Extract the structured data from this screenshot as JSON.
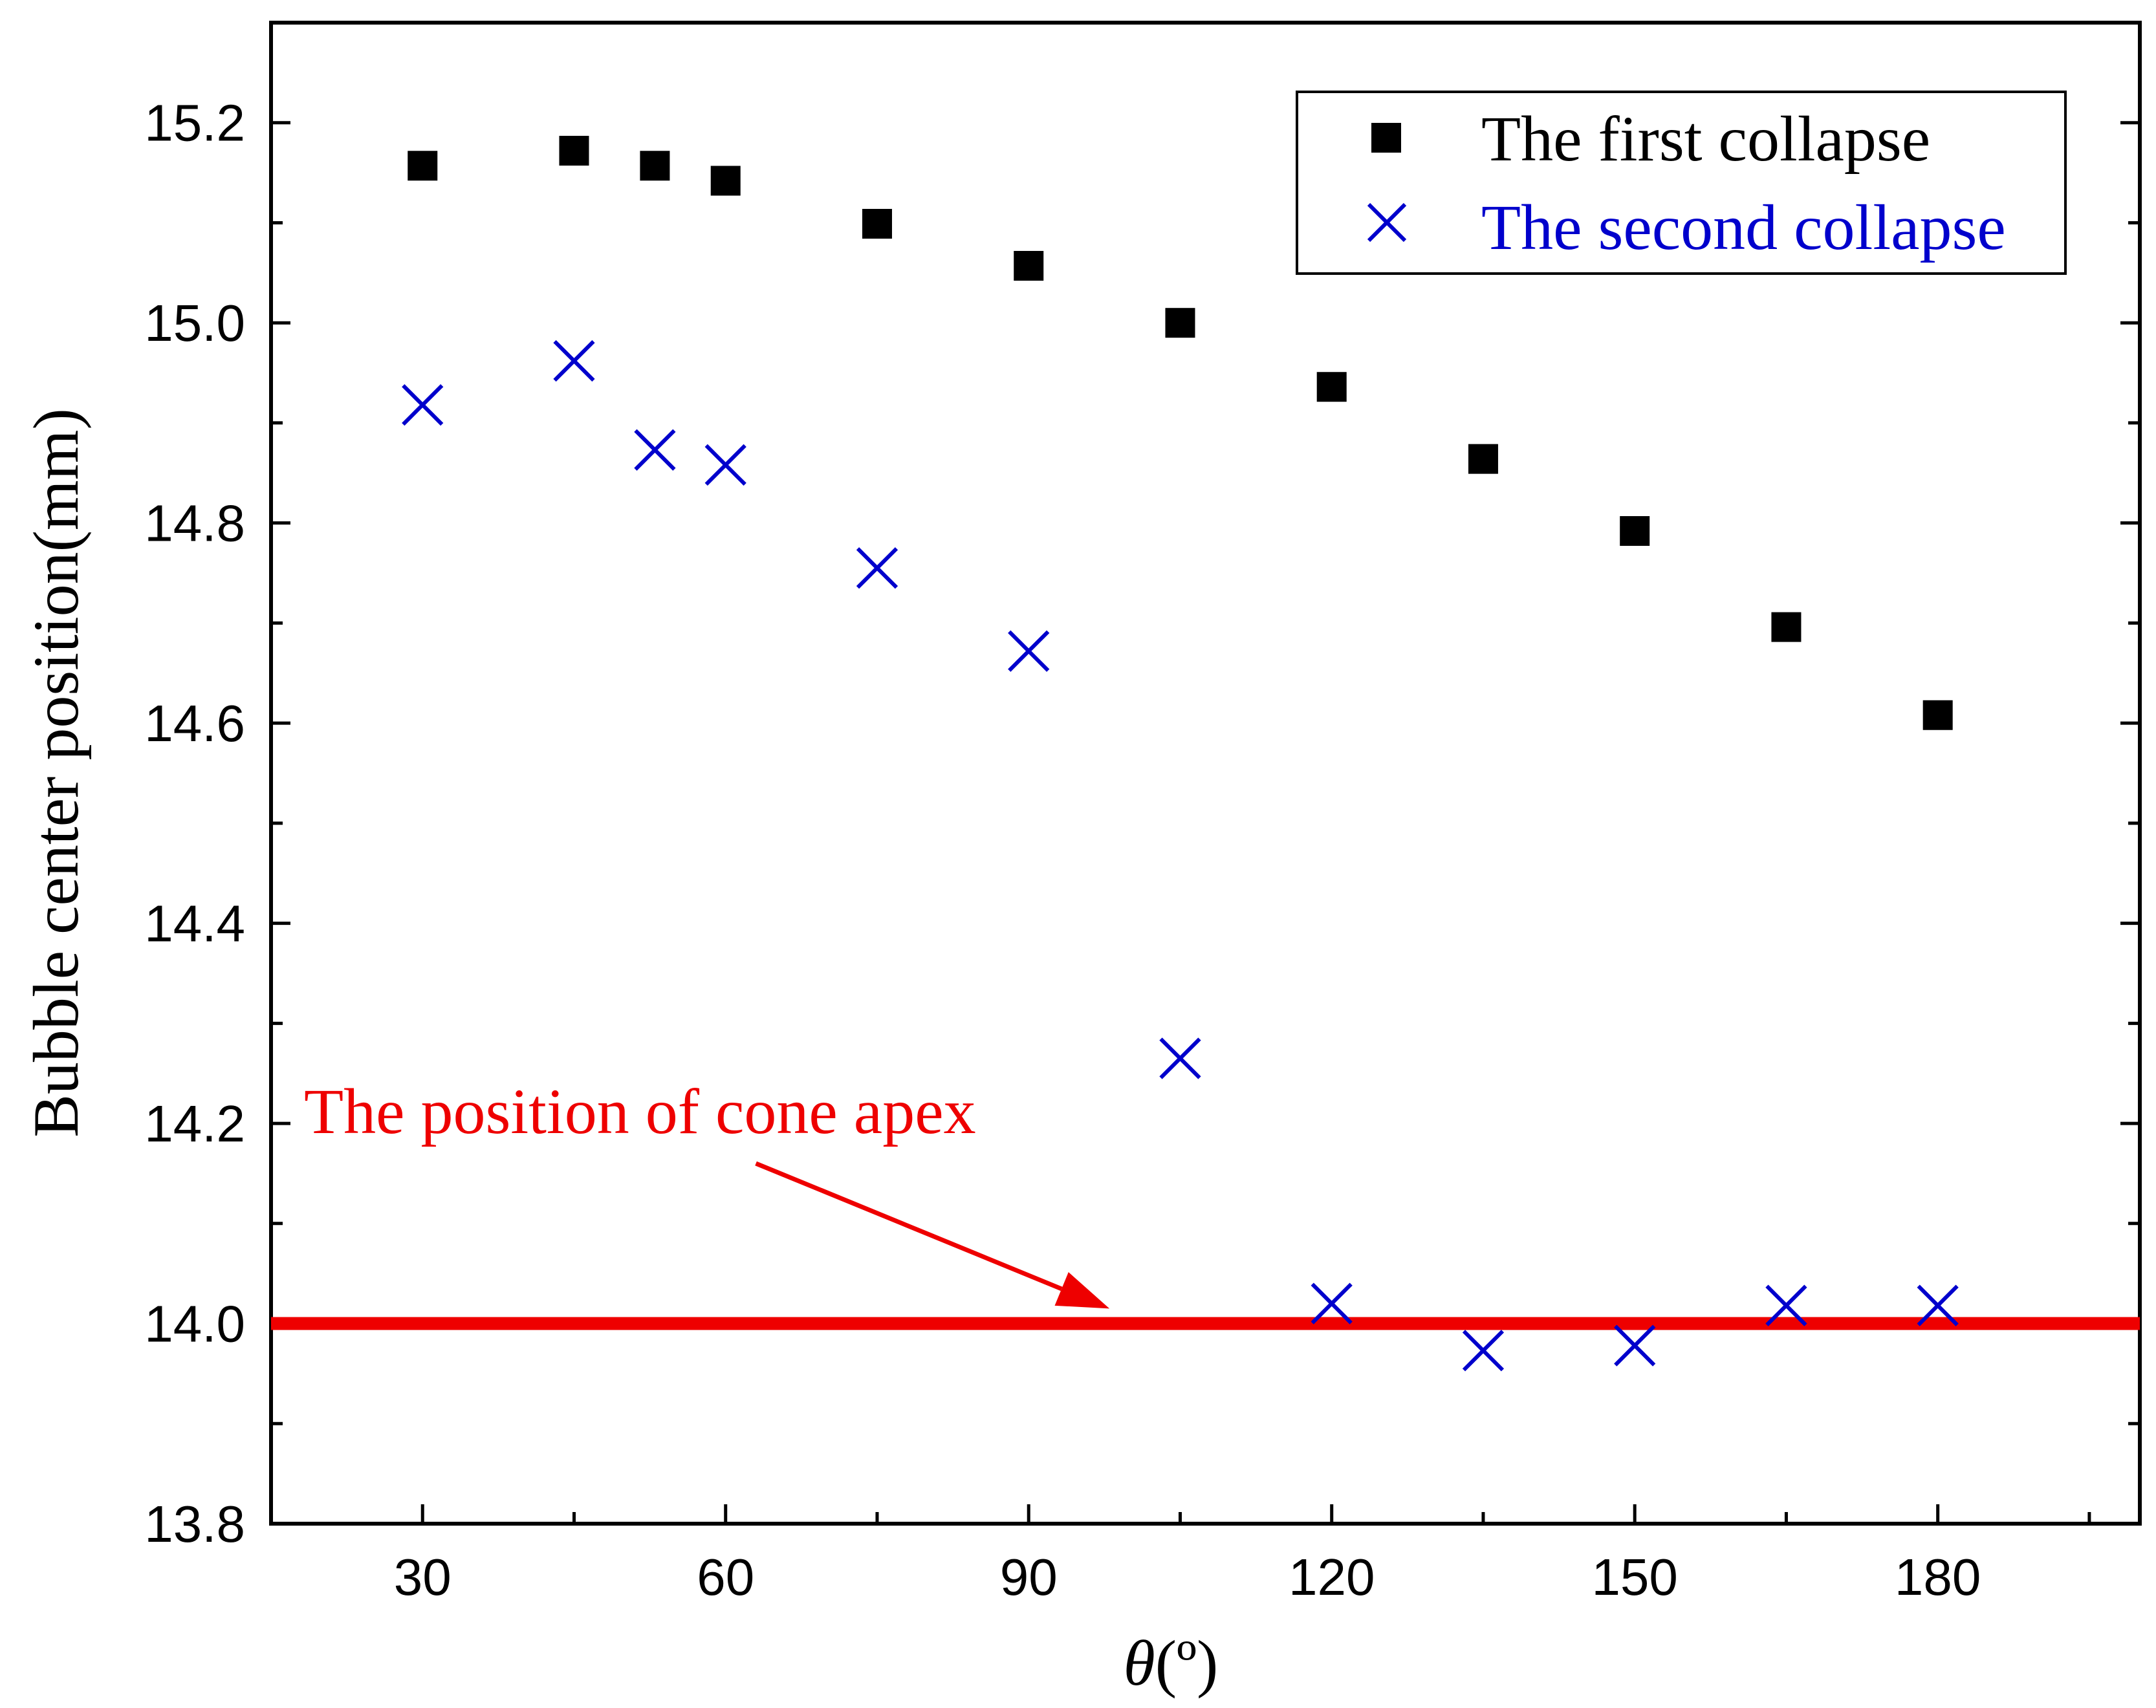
{
  "chart_data": {
    "type": "scatter",
    "title": "",
    "xlabel_symbol": "θ",
    "xlabel_unit": "(º)",
    "ylabel": "Bubble center position(mm)",
    "xlim": [
      15,
      200
    ],
    "ylim": [
      13.8,
      15.3
    ],
    "xticks": [
      30,
      60,
      90,
      120,
      150,
      180
    ],
    "xtick_labels": [
      "30",
      "60",
      "90",
      "120",
      "150",
      "180"
    ],
    "yticks": [
      13.8,
      14.0,
      14.2,
      14.4,
      14.6,
      14.8,
      15.0,
      15.2
    ],
    "ytick_labels": [
      "13.8",
      "14.0",
      "14.2",
      "14.4",
      "14.6",
      "14.8",
      "15.0",
      "15.2"
    ],
    "x_minor_step": 15,
    "y_minor_step": 0.1,
    "grid": false,
    "legend_position": "top-right",
    "series": [
      {
        "name": "The first collapse",
        "marker": "square",
        "color": "#000000",
        "x": [
          30,
          45,
          53,
          60,
          75,
          90,
          105,
          120,
          135,
          150,
          165,
          180
        ],
        "y": [
          15.157,
          15.172,
          15.157,
          15.142,
          15.099,
          15.057,
          15.0,
          14.936,
          14.864,
          14.792,
          14.696,
          14.608
        ]
      },
      {
        "name": "The second collapse",
        "marker": "x",
        "color": "#0000cc",
        "x": [
          30,
          45,
          53,
          60,
          75,
          90,
          105,
          120,
          135,
          150,
          165,
          180
        ],
        "y": [
          14.918,
          14.962,
          14.873,
          14.858,
          14.755,
          14.672,
          14.265,
          14.02,
          13.973,
          13.978,
          14.018,
          14.018
        ]
      }
    ],
    "reference_line": {
      "y": 14.0,
      "color": "#ee0000"
    },
    "annotation": {
      "text": "The position of cone apex",
      "color": "#ee0000",
      "arrow_from": [
        63,
        14.16
      ],
      "arrow_to": [
        98,
        14.015
      ]
    }
  }
}
